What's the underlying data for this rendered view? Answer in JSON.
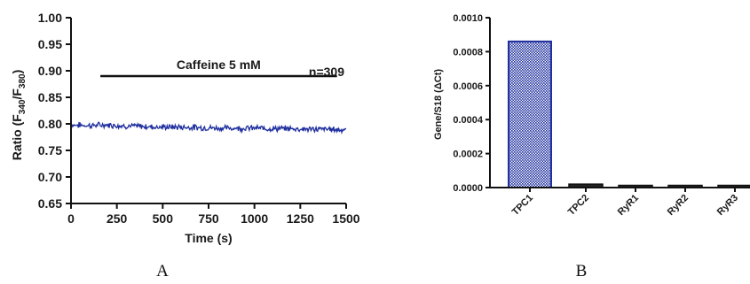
{
  "chart_data": [
    {
      "panel": "A",
      "type": "line",
      "xlabel": "Time (s)",
      "ylabel_main": "Ratio (F",
      "ylabel_sub1": "340",
      "ylabel_mid": "/F",
      "ylabel_sub2": "380",
      "ylabel_end": ")",
      "xlim": [
        0,
        1500
      ],
      "ylim": [
        0.65,
        1.0
      ],
      "xticks": [
        0,
        250,
        500,
        750,
        1000,
        1250,
        1500
      ],
      "yticks": [
        0.65,
        0.7,
        0.75,
        0.8,
        0.85,
        0.9,
        0.95,
        1.0
      ],
      "ytick_labels": [
        "0.65",
        "0.70",
        "0.75",
        "0.80",
        "0.85",
        "0.90",
        "0.95",
        "1.00"
      ],
      "annotation_bar": {
        "label": "Caffeine  5 mM",
        "x_start": 160,
        "x_end": 1450,
        "y": 0.89
      },
      "n_label": "n=309",
      "series": [
        {
          "color": "#1f2f9e",
          "x": [
            0,
            100,
            200,
            300,
            400,
            500,
            600,
            700,
            800,
            900,
            1000,
            1100,
            1200,
            1300,
            1400,
            1500
          ],
          "y": [
            0.798,
            0.797,
            0.798,
            0.796,
            0.795,
            0.794,
            0.794,
            0.793,
            0.792,
            0.792,
            0.792,
            0.791,
            0.791,
            0.79,
            0.79,
            0.789
          ]
        }
      ]
    },
    {
      "panel": "B",
      "type": "bar",
      "ylabel": "Gene/S18 (ΔCt)",
      "categories": [
        "TPC1",
        "TPC2",
        "RyR1",
        "RyR2",
        "RyR3"
      ],
      "values": [
        0.00086,
        1.5e-05,
        5e-06,
        5e-06,
        1e-06
      ],
      "ylim": [
        0,
        0.001
      ],
      "yticks": [
        0,
        0.0002,
        0.0004,
        0.0006,
        0.0008,
        0.001
      ],
      "ytick_labels": [
        "0.0000",
        "0.0002",
        "0.0004",
        "0.0006",
        "0.0008",
        "0.0010"
      ],
      "bar_color": "#1f2f9e"
    }
  ],
  "panel_labels": {
    "a": "A",
    "b": "B"
  }
}
